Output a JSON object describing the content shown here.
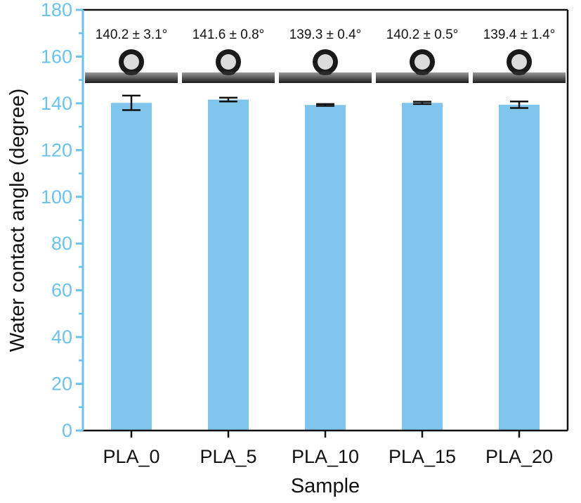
{
  "chart_data": {
    "type": "bar",
    "categories": [
      "PLA_0",
      "PLA_5",
      "PLA_10",
      "PLA_15",
      "PLA_20"
    ],
    "values": [
      140.2,
      141.6,
      139.3,
      140.2,
      139.4
    ],
    "errors": [
      3.1,
      0.8,
      0.4,
      0.5,
      1.4
    ],
    "annotations": [
      "140.2 ± 3.1°",
      "141.6 ± 0.8°",
      "139.3 ± 0.4°",
      "140.2 ± 0.5°",
      "139.4 ± 1.4°"
    ],
    "xlabel": "Sample",
    "ylabel": "Water contact angle (degree)",
    "ylim": [
      0,
      180
    ],
    "yticks": [
      0,
      20,
      40,
      60,
      80,
      100,
      120,
      140,
      160,
      180
    ],
    "grid": false,
    "colors": {
      "bar": "#80c5ec",
      "y_axis": "#6cc3ea",
      "frame": "#111111",
      "error_bar": "#111111"
    }
  }
}
